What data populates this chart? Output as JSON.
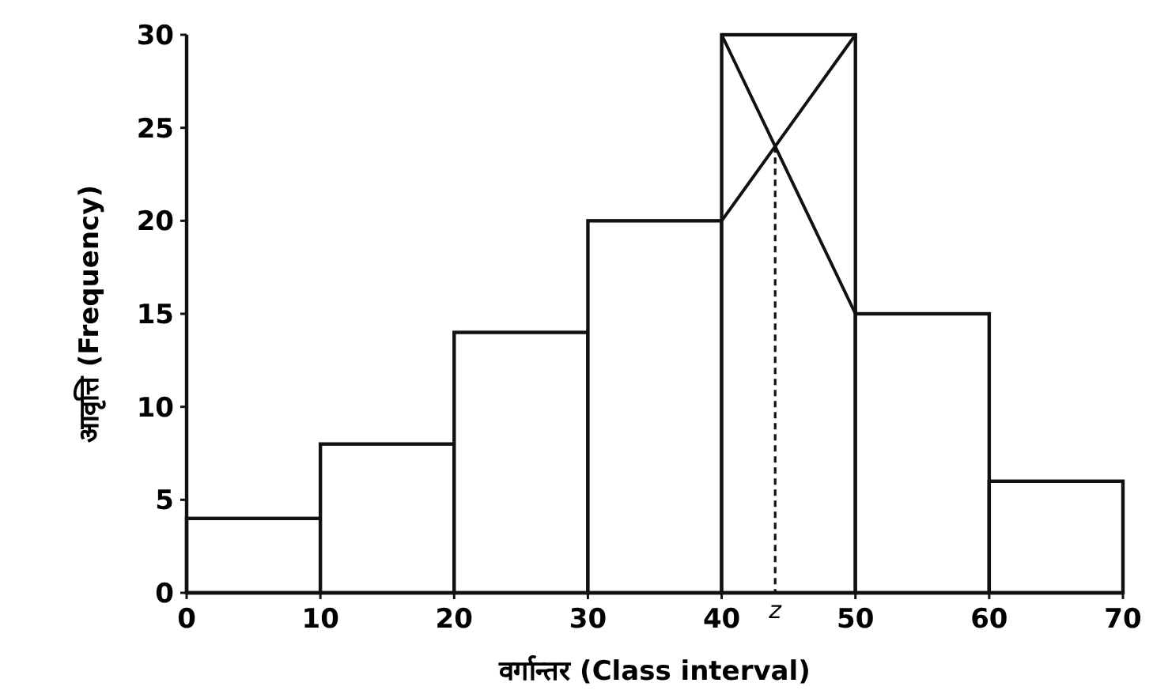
{
  "chart_data": {
    "type": "histogram",
    "xlabel": "वर्गान्तर (Class interval)",
    "ylabel": "आवृत्ति (Frequency)",
    "bins": [
      0,
      10,
      20,
      30,
      40,
      50,
      60,
      70
    ],
    "values": [
      4,
      8,
      14,
      20,
      30,
      15,
      6
    ],
    "color": "#ffffff",
    "xlim": [
      0,
      70
    ],
    "xticks": [
      0,
      10,
      20,
      30,
      40,
      50,
      60,
      70
    ],
    "ylim": [
      0,
      30
    ],
    "yticks": [
      0,
      5,
      10,
      15,
      20,
      25,
      30
    ],
    "grid": false,
    "ref_lines": [
      {
        "axis": "x",
        "value": 44,
        "label": "z",
        "line_style": "dashed"
      }
    ]
  }
}
